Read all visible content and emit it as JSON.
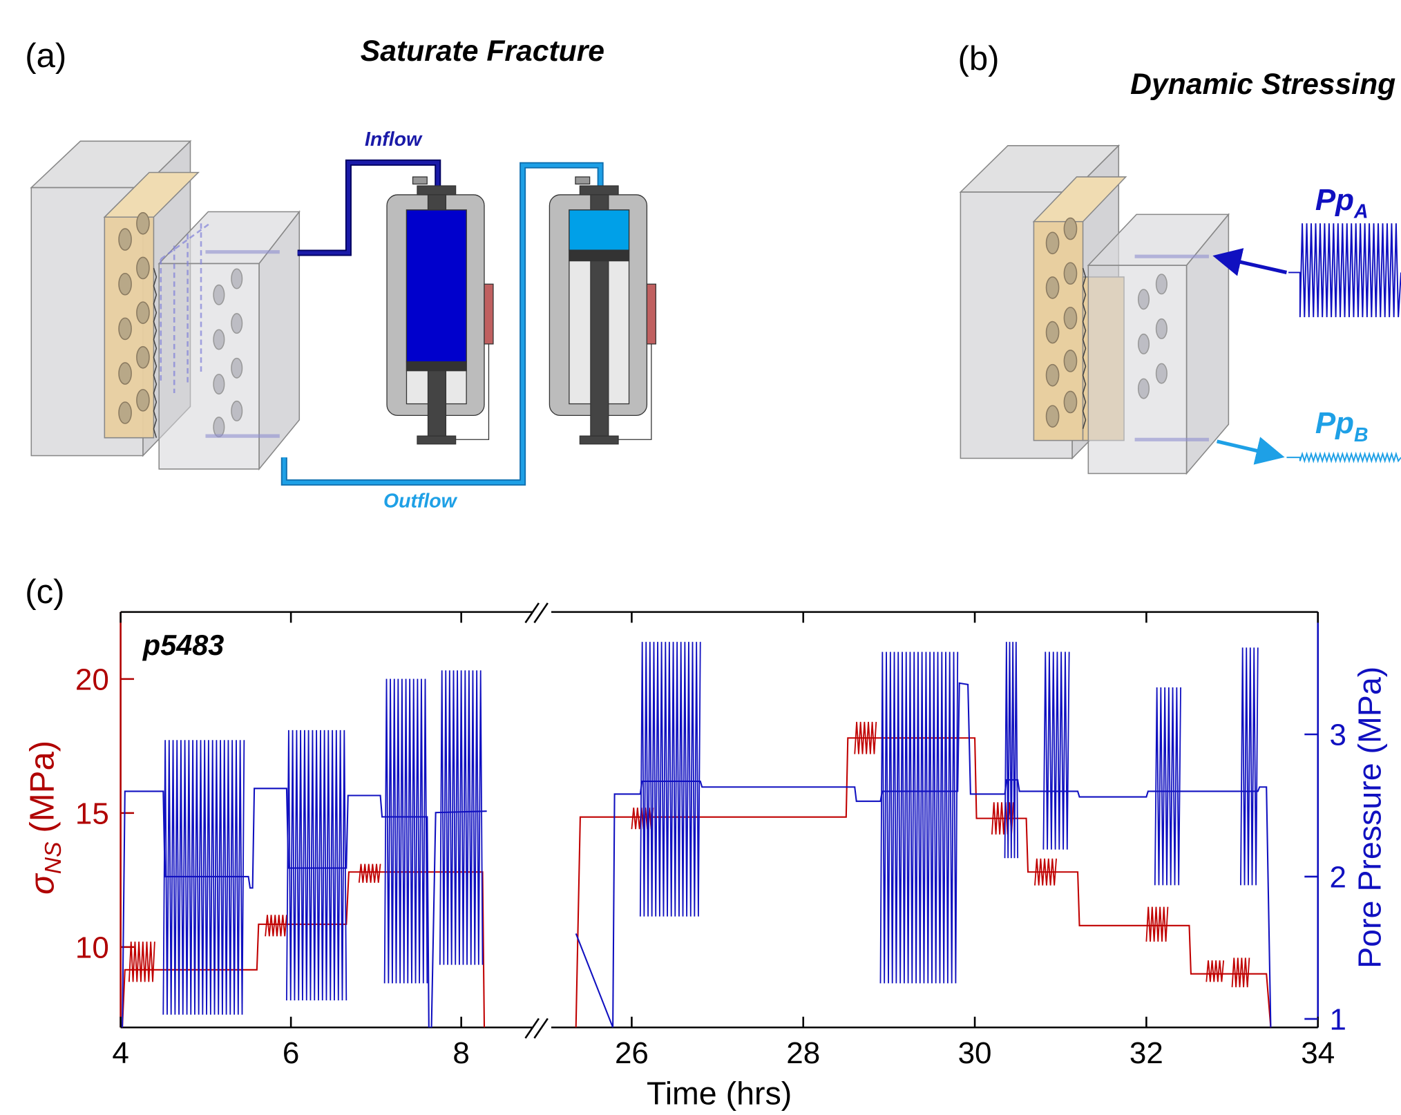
{
  "panel_a": {
    "label": "(a)",
    "title": "Saturate Fracture",
    "inflow_label": "Inflow",
    "outflow_label": "Outflow"
  },
  "panel_b": {
    "label": "(b)",
    "title": "Dynamic Stressing",
    "pp_a": {
      "text": "Pp",
      "subscript": "A"
    },
    "pp_b": {
      "text": "Pp",
      "subscript": "B"
    }
  },
  "chart_data": {
    "type": "line",
    "panel_label": "(c)",
    "annotation": "p5483",
    "x_label": "Time (hrs)",
    "y_label": {
      "symbol": "σ",
      "subscript": "NS",
      "unit": "(MPa)"
    },
    "y2_label": "Pore Pressure (MPa)",
    "xlim_segments": [
      [
        4,
        8.9
      ],
      [
        25,
        34
      ]
    ],
    "xticks": [
      4,
      6,
      8,
      26,
      28,
      30,
      32,
      34
    ],
    "ylim": [
      7,
      22.5
    ],
    "yticks": [
      10,
      15,
      20
    ],
    "y_color": "#b00000",
    "y2lim": [
      0.94,
      3.86
    ],
    "y2ticks": [
      1,
      2,
      3
    ],
    "y2_color": "#1010c0",
    "series": [
      {
        "color": "#c00000",
        "x": [
          4.02,
          4.05,
          5.6,
          5.62,
          6.65,
          6.68,
          8.25,
          8.27,
          null,
          25.35,
          25.4,
          28.5,
          28.52,
          30.0,
          30.02,
          30.6,
          30.62,
          31.2,
          31.22,
          32.5,
          32.52,
          33.4,
          33.45
        ],
        "values": [
          7,
          9.15,
          9.15,
          10.85,
          10.85,
          12.8,
          12.8,
          7,
          null,
          7,
          14.85,
          14.85,
          17.8,
          17.8,
          14.8,
          14.8,
          12.8,
          12.8,
          10.8,
          10.8,
          9.0,
          9.0,
          7
        ],
        "bursts": [
          {
            "x0": 4.1,
            "x1": 4.4,
            "low": 8.7,
            "high": 10.2
          },
          {
            "x0": 5.7,
            "x1": 5.95,
            "low": 10.4,
            "high": 11.2
          },
          {
            "x0": 6.8,
            "x1": 7.05,
            "low": 12.4,
            "high": 13.1
          },
          {
            "x0": 26.0,
            "x1": 26.25,
            "low": 14.4,
            "high": 15.2
          },
          {
            "x0": 28.6,
            "x1": 28.85,
            "low": 17.2,
            "high": 18.4
          },
          {
            "x0": 30.2,
            "x1": 30.45,
            "low": 14.2,
            "high": 15.4
          },
          {
            "x0": 30.7,
            "x1": 30.95,
            "low": 12.3,
            "high": 13.3
          },
          {
            "x0": 32.0,
            "x1": 32.25,
            "low": 10.2,
            "high": 11.5
          },
          {
            "x0": 32.7,
            "x1": 32.9,
            "low": 8.7,
            "high": 9.5
          },
          {
            "x0": 33.0,
            "x1": 33.2,
            "low": 8.5,
            "high": 9.6
          }
        ]
      },
      {
        "color": "#1010c0",
        "axis": "y2",
        "x": [
          4.02,
          4.05,
          4.5,
          4.52,
          5.5,
          5.52,
          5.55,
          5.57,
          5.95,
          5.97,
          6.65,
          6.67,
          7.05,
          7.07,
          7.6,
          7.62,
          7.65,
          7.7,
          8.3,
          null,
          25.35,
          25.78,
          25.8,
          26.1,
          26.12,
          26.8,
          26.82,
          28.6,
          28.62,
          28.9,
          28.92,
          29.8,
          29.82,
          29.92,
          29.95,
          30.35,
          30.37,
          30.5,
          30.52,
          31.2,
          31.22,
          32.0,
          32.02,
          33.3,
          33.32,
          33.4,
          33.45
        ],
        "values": [
          0.94,
          2.6,
          2.6,
          2.0,
          2.0,
          1.92,
          1.92,
          2.62,
          2.62,
          2.06,
          2.06,
          2.57,
          2.57,
          2.42,
          2.42,
          0.94,
          0.94,
          2.45,
          2.46,
          null,
          1.6,
          0.94,
          2.58,
          2.58,
          2.67,
          2.67,
          2.63,
          2.63,
          2.53,
          2.53,
          2.6,
          2.6,
          3.36,
          3.35,
          2.58,
          2.58,
          2.68,
          2.68,
          2.6,
          2.6,
          2.56,
          2.56,
          2.6,
          2.6,
          2.63,
          2.63,
          0.94
        ],
        "bursts": [
          {
            "x0": 4.5,
            "x1": 5.45,
            "low": 1.03,
            "high": 2.96
          },
          {
            "x0": 5.95,
            "x1": 6.65,
            "low": 1.13,
            "high": 3.03
          },
          {
            "x0": 7.1,
            "x1": 7.6,
            "low": 1.25,
            "high": 3.39
          },
          {
            "x0": 7.75,
            "x1": 8.25,
            "low": 1.38,
            "high": 3.45
          },
          {
            "x0": 26.1,
            "x1": 26.8,
            "low": 1.72,
            "high": 3.65
          },
          {
            "x0": 28.9,
            "x1": 29.8,
            "low": 1.25,
            "high": 3.58
          },
          {
            "x0": 30.35,
            "x1": 30.5,
            "low": 2.13,
            "high": 3.65
          },
          {
            "x0": 30.8,
            "x1": 31.1,
            "low": 2.19,
            "high": 3.58
          },
          {
            "x0": 32.1,
            "x1": 32.4,
            "low": 1.94,
            "high": 3.33
          },
          {
            "x0": 33.1,
            "x1": 33.3,
            "low": 1.94,
            "high": 3.61
          }
        ]
      }
    ]
  }
}
